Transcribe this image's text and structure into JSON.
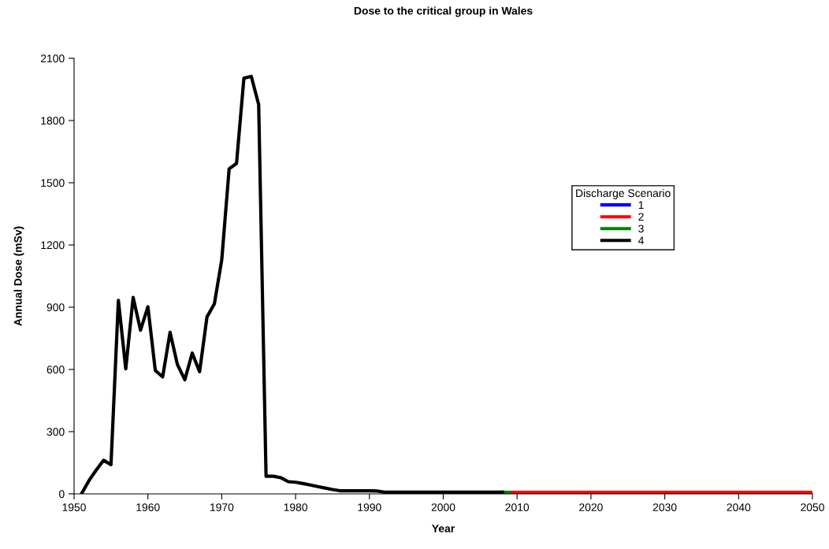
{
  "chart_data": {
    "type": "line",
    "title": "Dose to the critical group in Wales",
    "xlabel": "Year",
    "ylabel": "Annual Dose (mSv)",
    "legend_title": "Discharge Scenario",
    "series": [
      {
        "name": "1",
        "color": "#0000ff"
      },
      {
        "name": "2",
        "color": "#ff0000",
        "x": [
          2009,
          2020,
          2030,
          2040,
          2050
        ],
        "values": [
          7,
          7,
          7,
          7,
          7
        ]
      },
      {
        "name": "3",
        "color": "#008000",
        "x": [
          2008,
          2009
        ],
        "values": [
          8,
          7
        ]
      },
      {
        "name": "4",
        "color": "#000000",
        "x": [
          1951,
          1952,
          1953,
          1954,
          1955,
          1956,
          1957,
          1958,
          1959,
          1960,
          1961,
          1962,
          1963,
          1964,
          1965,
          1966,
          1967,
          1968,
          1969,
          1970,
          1971,
          1972,
          1973,
          1974,
          1975,
          1976,
          1977,
          1978,
          1979,
          1980,
          1981,
          1982,
          1983,
          1984,
          1985,
          1986,
          1987,
          1988,
          1989,
          1990,
          1991,
          1992,
          2000,
          2008
        ],
        "values": [
          0,
          63,
          115,
          162,
          141,
          933,
          603,
          947,
          789,
          902,
          595,
          564,
          779,
          623,
          550,
          679,
          589,
          853,
          916,
          1128,
          1567,
          1593,
          2004,
          2013,
          1877,
          85,
          85,
          78,
          59,
          56,
          50,
          43,
          35,
          28,
          21,
          15,
          15,
          15,
          15,
          15,
          14,
          8,
          8,
          8
        ]
      }
    ],
    "xlim": [
      1950,
      2050
    ],
    "xticks": [
      1950,
      1960,
      1970,
      1980,
      1990,
      2000,
      2010,
      2020,
      2030,
      2040,
      2050
    ],
    "ylim": [
      0,
      2100
    ],
    "yticks": [
      0,
      300,
      600,
      900,
      1200,
      1500,
      1800,
      2100
    ],
    "legend": "top right",
    "grid": false,
    "marker": "none",
    "line_style": "solid"
  }
}
